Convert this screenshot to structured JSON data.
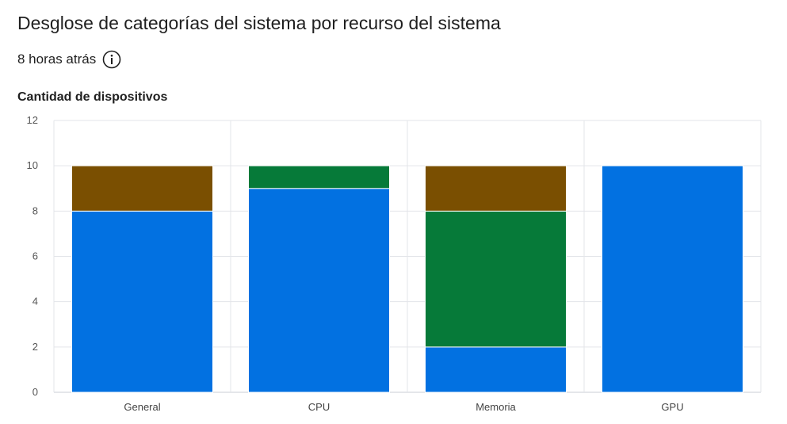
{
  "header": {
    "title": "Desglose de categorías del sistema por recurso del sistema",
    "timestamp": "8 horas atrás",
    "info_icon": "info-circle-icon"
  },
  "chart_data": {
    "type": "bar",
    "stacked": true,
    "categories": [
      "General",
      "CPU",
      "Memoria",
      "GPU"
    ],
    "series": [
      {
        "color": "#0271e1",
        "values": [
          8,
          9,
          2,
          10
        ]
      },
      {
        "color": "#067a39",
        "values": [
          0,
          1,
          6,
          0
        ]
      },
      {
        "color": "#7a4f01",
        "values": [
          2,
          0,
          2,
          0
        ]
      }
    ],
    "ylabel": "Cantidad de dispositivos",
    "ylim": [
      0,
      12
    ],
    "yticks": [
      0,
      2,
      4,
      6,
      8,
      10,
      12
    ],
    "grid": true
  }
}
